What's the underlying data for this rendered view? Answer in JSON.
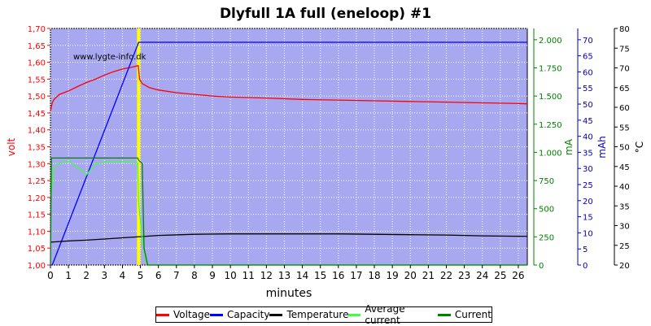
{
  "chart_data": {
    "type": "line",
    "title": "Dlyfull 1A full (eneloop) #1",
    "watermark": "www.lygte-info.dk",
    "xlabel": "minutes",
    "x_ticks": [
      "0",
      "1",
      "2",
      "3",
      "4",
      "5",
      "6",
      "7",
      "8",
      "9",
      "10",
      "11",
      "12",
      "13",
      "14",
      "15",
      "16",
      "17",
      "18",
      "19",
      "20",
      "21",
      "22",
      "23",
      "24",
      "25",
      "26"
    ],
    "xlim": [
      0,
      26.5
    ],
    "axes": {
      "volt": {
        "label": "volt",
        "color": "#ff0000",
        "lim": [
          1.0,
          1.7
        ],
        "ticks": [
          "1,00",
          "1,05",
          "1,10",
          "1,15",
          "1,20",
          "1,25",
          "1,30",
          "1,35",
          "1,40",
          "1,45",
          "1,50",
          "1,55",
          "1,60",
          "1,65",
          "1,70"
        ]
      },
      "mA": {
        "label": "mA",
        "color": "#008000",
        "lim": [
          0,
          2100
        ],
        "ticks": [
          "0",
          "250",
          "500",
          "750",
          "1.000",
          "1.250",
          "1.500",
          "1.750",
          "2.000"
        ]
      },
      "mAh": {
        "label": "mAh",
        "color": "#0000c0",
        "lim": [
          0,
          73.5
        ],
        "ticks": [
          "0",
          "5",
          "10",
          "15",
          "20",
          "25",
          "30",
          "35",
          "40",
          "45",
          "50",
          "55",
          "60",
          "65",
          "70"
        ]
      },
      "temp": {
        "label": "°C",
        "color": "#000000",
        "lim": [
          20,
          80
        ],
        "ticks": [
          "20",
          "25",
          "30",
          "35",
          "40",
          "45",
          "50",
          "55",
          "60",
          "65",
          "70",
          "75",
          "80"
        ]
      }
    },
    "series": [
      {
        "name": "Voltage",
        "color": "#ff0000",
        "axis": "volt",
        "x": [
          0,
          0.1,
          0.2,
          0.5,
          1,
          1.5,
          2,
          2.5,
          3,
          3.5,
          4,
          4.5,
          4.88,
          4.95,
          5.1,
          5.5,
          6,
          7,
          8,
          9,
          10,
          12,
          14,
          16,
          18,
          20,
          22,
          24,
          26,
          26.5
        ],
        "y": [
          1.455,
          1.48,
          1.49,
          1.505,
          1.515,
          1.528,
          1.54,
          1.55,
          1.562,
          1.572,
          1.58,
          1.585,
          1.59,
          1.55,
          1.537,
          1.525,
          1.518,
          1.51,
          1.505,
          1.5,
          1.497,
          1.494,
          1.49,
          1.488,
          1.486,
          1.484,
          1.482,
          1.48,
          1.478,
          1.477
        ]
      },
      {
        "name": "Capacity",
        "color": "#0000ff",
        "axis": "mAh",
        "x": [
          0,
          0.1,
          4.9,
          16,
          26.5
        ],
        "y": [
          0,
          0,
          69.2,
          69.2,
          69.2
        ]
      },
      {
        "name": "Temperature",
        "color": "#000000",
        "axis": "temp",
        "x": [
          0,
          1,
          2,
          3,
          4,
          5,
          6,
          8,
          10,
          12,
          14,
          16,
          18,
          20,
          22,
          24,
          26,
          26.5
        ],
        "y": [
          25.8,
          26.1,
          26.3,
          26.6,
          26.9,
          27.2,
          27.5,
          27.8,
          27.9,
          27.9,
          27.9,
          27.9,
          27.8,
          27.7,
          27.6,
          27.4,
          27.3,
          27.3
        ]
      },
      {
        "name": "Average current",
        "color": "#40ff40",
        "axis": "mA",
        "x": [
          0,
          0.1,
          0.2,
          0.5,
          1,
          1.5,
          2,
          2.5,
          3,
          3.5,
          4,
          4.5,
          4.85,
          4.9,
          5.1,
          5.3,
          5.5,
          6,
          26.5
        ],
        "y": [
          600,
          720,
          870,
          905,
          920,
          870,
          800,
          900,
          910,
          920,
          920,
          910,
          905,
          550,
          230,
          30,
          0,
          0,
          0
        ]
      },
      {
        "name": "Current",
        "color": "#008000",
        "axis": "mA",
        "x": [
          0,
          0.05,
          0.1,
          4.85,
          4.9,
          5.1,
          5.2,
          5.4,
          26.5
        ],
        "y": [
          0,
          950,
          950,
          950,
          930,
          900,
          150,
          0,
          0
        ]
      }
    ],
    "annotations": [
      {
        "type": "vertical_line",
        "x": 4.9,
        "color": "#ffff00"
      }
    ],
    "legend": {
      "placement": "bottom-center",
      "entries": [
        "Voltage",
        "Capacity",
        "Temperature",
        "Average current",
        "Current"
      ]
    },
    "grid": true,
    "plot_background": "#a8a8f0"
  }
}
